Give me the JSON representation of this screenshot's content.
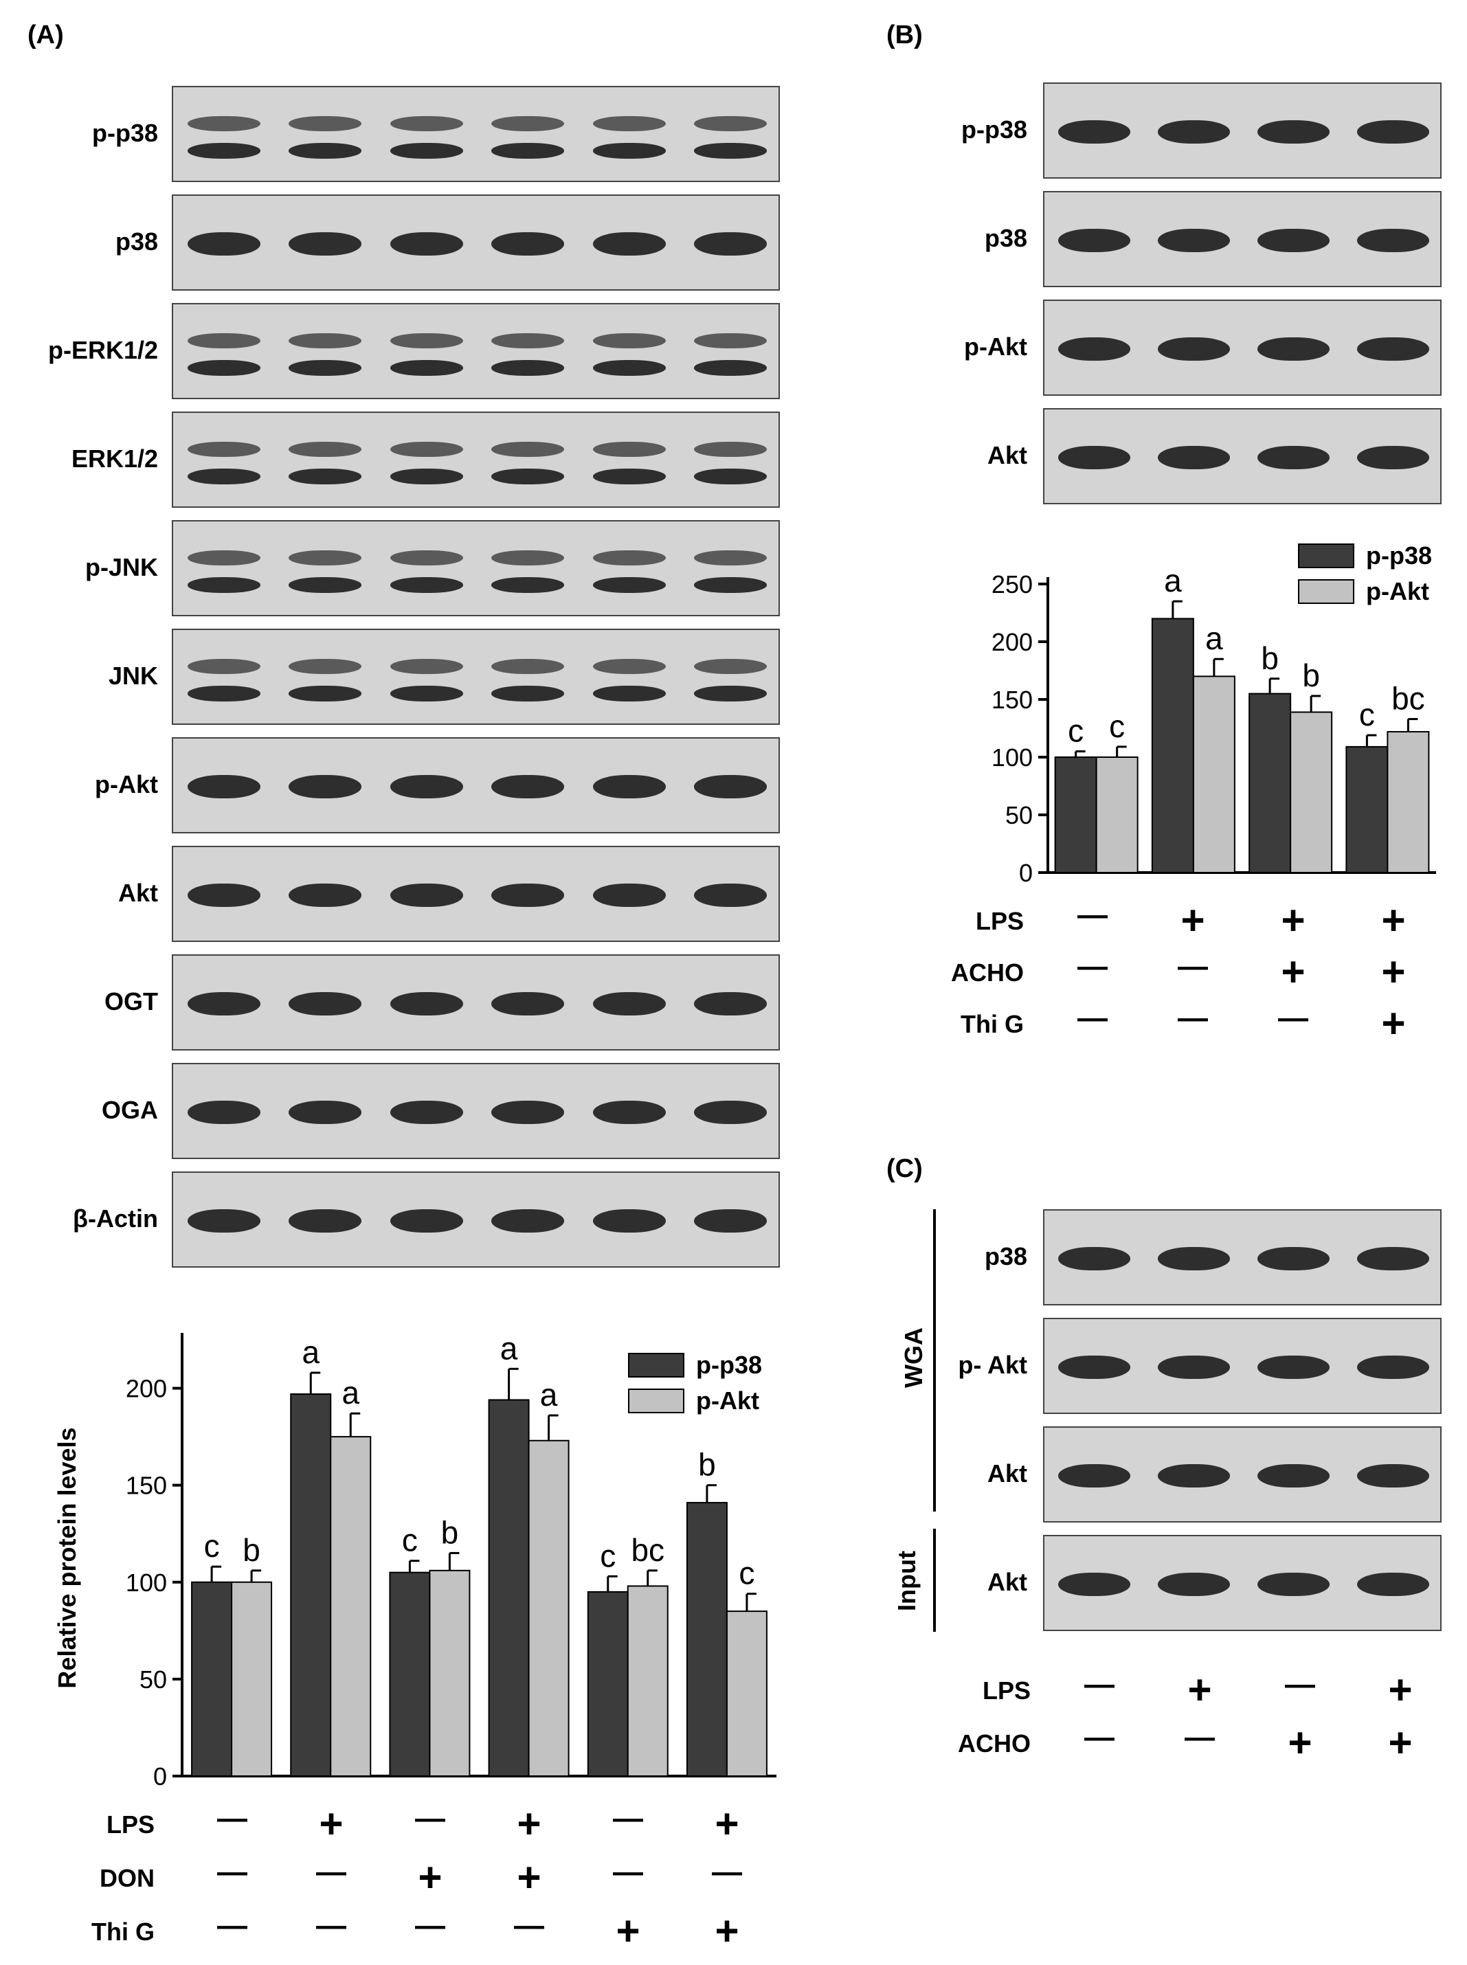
{
  "panels": {
    "A": {
      "letter": "(A)",
      "blots": [
        "p-p38",
        "p38",
        "p-ERK1/2",
        "ERK1/2",
        "p-JNK",
        "JNK",
        "p-Akt",
        "Akt",
        "OGT",
        "OGA",
        "β-Actin"
      ],
      "treatments": [
        {
          "label": "LPS",
          "signs": [
            "—",
            "+",
            "—",
            "+",
            "—",
            "+"
          ]
        },
        {
          "label": "DON",
          "signs": [
            "—",
            "—",
            "+",
            "+",
            "—",
            "—"
          ]
        },
        {
          "label": "Thi G",
          "signs": [
            "—",
            "—",
            "—",
            "—",
            "+",
            "+"
          ]
        }
      ]
    },
    "B": {
      "letter": "(B)",
      "blots": [
        "p-p38",
        "p38",
        "p-Akt",
        "Akt"
      ],
      "treatments": [
        {
          "label": "LPS",
          "signs": [
            "—",
            "+",
            "+",
            "+"
          ]
        },
        {
          "label": "ACHO",
          "signs": [
            "—",
            "—",
            "+",
            "+"
          ]
        },
        {
          "label": "Thi G",
          "signs": [
            "—",
            "—",
            "—",
            "+"
          ]
        }
      ]
    },
    "C": {
      "letter": "(C)",
      "group_labels": {
        "wga": "WGA",
        "input": "Input"
      },
      "blots": [
        "p38",
        "p- Akt",
        "Akt",
        "Akt"
      ],
      "treatments": [
        {
          "label": "LPS",
          "signs": [
            "—",
            "+",
            "—",
            "+"
          ]
        },
        {
          "label": "ACHO",
          "signs": [
            "—",
            "—",
            "+",
            "+"
          ]
        }
      ]
    }
  },
  "colors": {
    "p-p38": "#3c3c3c",
    "p-Akt": "#c2c2c2"
  },
  "chart_data": [
    {
      "panel": "A",
      "type": "bar",
      "ylabel": "Relative protein levels",
      "ylim": [
        0,
        225
      ],
      "yticks": [
        0,
        50,
        100,
        150,
        200
      ],
      "group_count": 6,
      "legend": "top-right",
      "series": [
        {
          "name": "p-p38",
          "values": [
            100,
            197,
            105,
            194,
            95,
            141
          ],
          "errors": [
            8,
            11,
            6,
            16,
            8,
            9
          ],
          "letters": [
            "c",
            "a",
            "c",
            "a",
            "c",
            "b"
          ]
        },
        {
          "name": "p-Akt",
          "values": [
            100,
            175,
            106,
            173,
            98,
            85
          ],
          "errors": [
            6,
            12,
            9,
            13,
            8,
            9
          ],
          "letters": [
            "b",
            "a",
            "b",
            "a",
            "bc",
            "c"
          ]
        }
      ]
    },
    {
      "panel": "B",
      "type": "bar",
      "ylabel": "",
      "ylim": [
        0,
        250
      ],
      "yticks": [
        0,
        50,
        100,
        150,
        200,
        250
      ],
      "group_count": 4,
      "legend": "top-right",
      "series": [
        {
          "name": "p-p38",
          "values": [
            100,
            220,
            155,
            109
          ],
          "errors": [
            5,
            15,
            13,
            10
          ],
          "letters": [
            "c",
            "a",
            "b",
            "c"
          ]
        },
        {
          "name": "p-Akt",
          "values": [
            100,
            170,
            139,
            122
          ],
          "errors": [
            9,
            15,
            14,
            11
          ],
          "letters": [
            "c",
            "a",
            "b",
            "bc"
          ]
        }
      ]
    }
  ]
}
